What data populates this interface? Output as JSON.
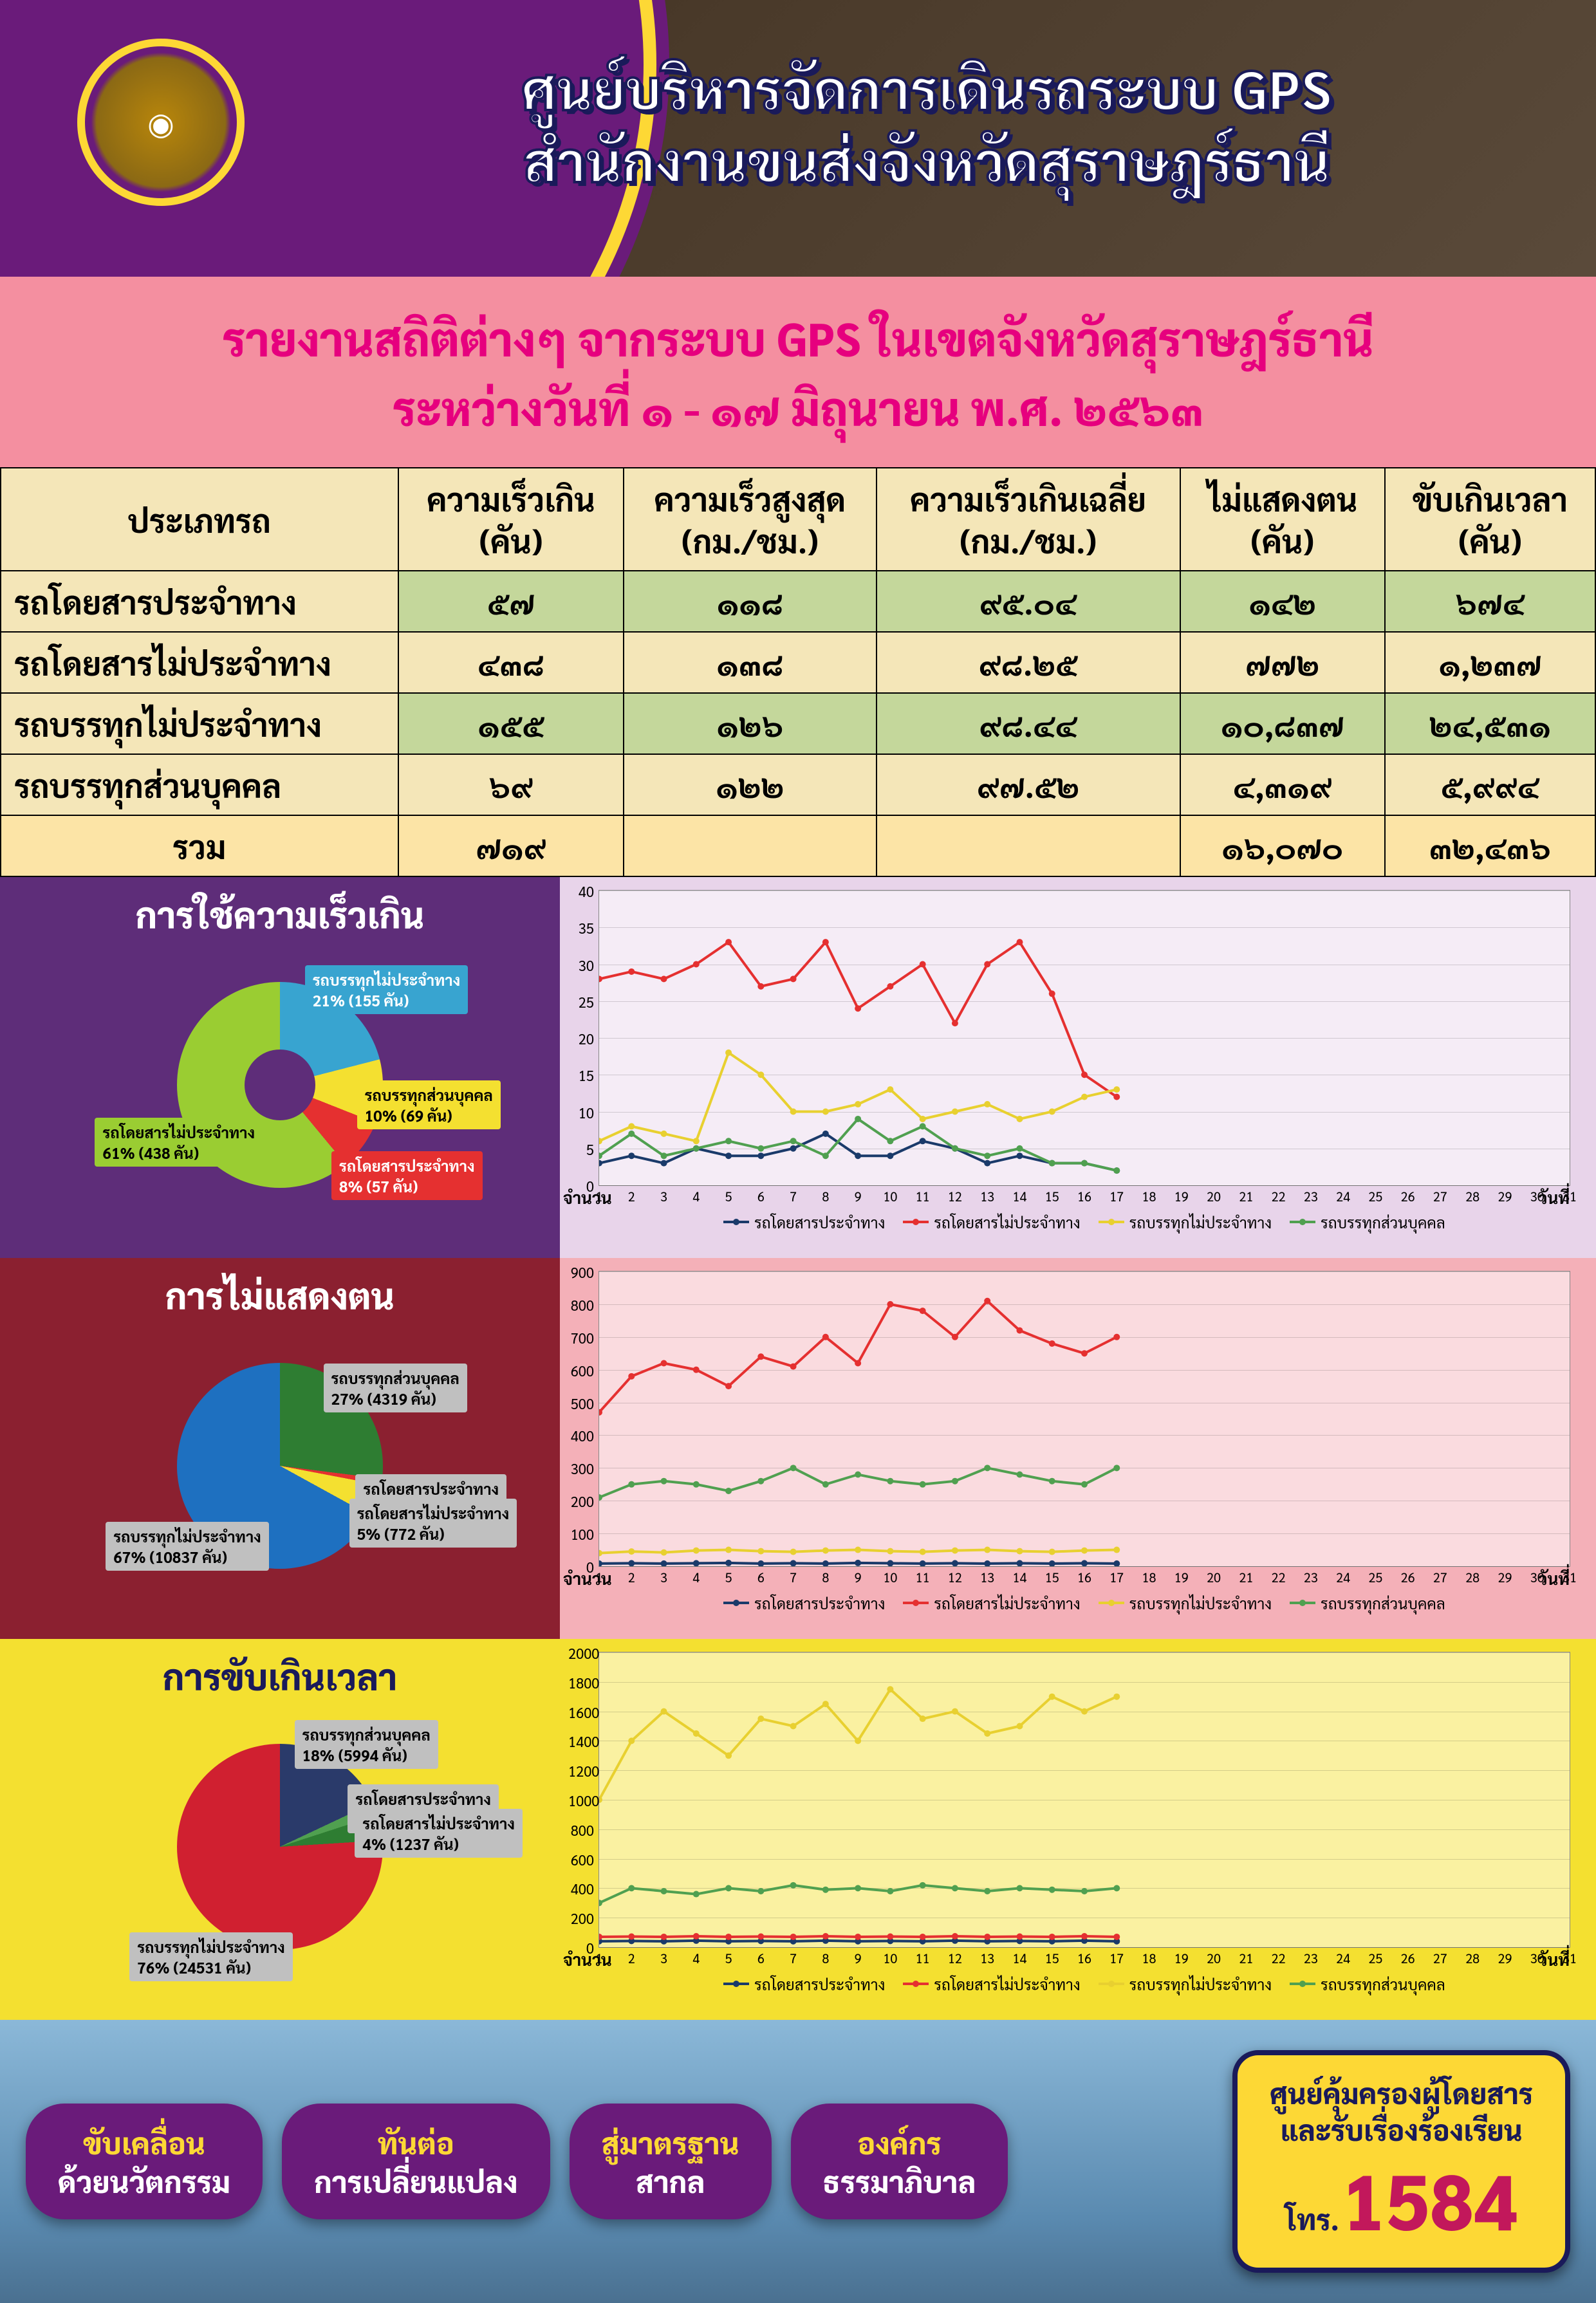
{
  "header": {
    "title1": "ศูนย์บริหารจัดการเดินรถระบบ GPS",
    "title2": "สำนักงานขนส่งจังหวัดสุราษฎร์ธานี"
  },
  "subtitle": {
    "line1": "รายงานสถิติต่างๆ จากระบบ GPS ในเขตจังหวัดสุราษฎร์ธานี",
    "line2": "ระหว่างวันที่ ๑ - ๑๗ มิถุนายน พ.ศ. ๒๕๖๓"
  },
  "table": {
    "columns": [
      "ประเภทรถ",
      "ความเร็วเกิน\n(คัน)",
      "ความเร็วสูงสุด\n(กม./ชม.)",
      "ความเร็วเกินเฉลี่ย\n(กม./ชม.)",
      "ไม่แสดงตน\n(คัน)",
      "ขับเกินเวลา\n(คัน)"
    ],
    "rows": [
      [
        "รถโดยสารประจำทาง",
        "๕๗",
        "๑๑๘",
        "๙๕.๐๔",
        "๑๔๒",
        "๖๗๔"
      ],
      [
        "รถโดยสารไม่ประจำทาง",
        "๔๓๘",
        "๑๓๘",
        "๙๘.๒๕",
        "๗๗๒",
        "๑,๒๓๗"
      ],
      [
        "รถบรรทุกไม่ประจำทาง",
        "๑๕๕",
        "๑๒๖",
        "๙๘.๔๔",
        "๑๐,๘๓๗",
        "๒๔,๕๓๑"
      ],
      [
        "รถบรรทุกส่วนบุคคล",
        "๖๙",
        "๑๒๒",
        "๙๗.๕๒",
        "๔,๓๑๙",
        "๕,๙๙๔"
      ]
    ],
    "sum": [
      "รวม",
      "๗๑๙",
      "",
      "",
      "๑๖,๐๗๐",
      "๓๒,๔๓๖"
    ]
  },
  "series_names": [
    "รถโดยสารประจำทาง",
    "รถโดยสารไม่ประจำทาง",
    "รถบรรทุกไม่ประจำทาง",
    "รถบรรทุกส่วนบุคคล"
  ],
  "series_colors": [
    "#1a3a6a",
    "#e53030",
    "#e8d030",
    "#50a050"
  ],
  "days": [
    1,
    2,
    3,
    4,
    5,
    6,
    7,
    8,
    9,
    10,
    11,
    12,
    13,
    14,
    15,
    16,
    17,
    18,
    19,
    20,
    21,
    22,
    23,
    24,
    25,
    26,
    27,
    28,
    29,
    30,
    31
  ],
  "axis_y_label": "จำนวน",
  "axis_x_label": "วันที่",
  "section1": {
    "title": "การใช้ความเร็วเกิน",
    "pie": {
      "slices": [
        {
          "label": "รถบรรทุกไม่ประจำทาง",
          "pct": 21,
          "count": "155 คัน",
          "color": "#38a4d0",
          "label_bg": "#38a4d0",
          "label_fg": "#fff"
        },
        {
          "label": "รถบรรทุกส่วนบุคคล",
          "pct": 10,
          "count": "69 คัน",
          "color": "#f4e030",
          "label_bg": "#f4e030",
          "label_fg": "#000"
        },
        {
          "label": "รถโดยสารประจำทาง",
          "pct": 8,
          "count": "57 คัน",
          "color": "#e53030",
          "label_bg": "#e53030",
          "label_fg": "#fff"
        },
        {
          "label": "รถโดยสารไม่ประจำทาง",
          "pct": 61,
          "count": "438 คัน",
          "color": "#9acd32",
          "label_bg": "#9acd32",
          "label_fg": "#000"
        }
      ],
      "donut_inner": "#5e2d79"
    },
    "line": {
      "ylim": [
        0,
        40
      ],
      "ystep": 5,
      "data": [
        [
          3,
          4,
          3,
          5,
          4,
          4,
          5,
          7,
          4,
          4,
          6,
          5,
          3,
          4,
          3,
          3,
          2
        ],
        [
          28,
          29,
          28,
          30,
          33,
          27,
          28,
          33,
          24,
          27,
          30,
          22,
          30,
          33,
          26,
          15,
          12
        ],
        [
          6,
          8,
          7,
          6,
          18,
          15,
          10,
          10,
          11,
          13,
          9,
          10,
          11,
          9,
          10,
          12,
          13
        ],
        [
          4,
          7,
          4,
          5,
          6,
          5,
          6,
          4,
          9,
          6,
          8,
          5,
          4,
          5,
          3,
          3,
          2
        ]
      ]
    }
  },
  "section2": {
    "title": "การไม่แสดงตน",
    "pie": {
      "slices": [
        {
          "label": "รถบรรทุกส่วนบุคคล",
          "pct": 27,
          "count": "4319 คัน",
          "color": "#2e7d32",
          "label_bg": "#c0c0c0",
          "label_fg": "#000"
        },
        {
          "label": "รถโดยสารประจำทาง",
          "pct": 1,
          "count": "142 คัน",
          "color": "#e53030",
          "label_bg": "#c0c0c0",
          "label_fg": "#000"
        },
        {
          "label": "รถโดยสารไม่ประจำทาง",
          "pct": 5,
          "count": "772 คัน",
          "color": "#f4e030",
          "label_bg": "#c0c0c0",
          "label_fg": "#000"
        },
        {
          "label": "รถบรรทุกไม่ประจำทาง",
          "pct": 67,
          "count": "10837 คัน",
          "color": "#1e70c0",
          "label_bg": "#c0c0c0",
          "label_fg": "#000"
        }
      ]
    },
    "line": {
      "ylim": [
        0,
        900
      ],
      "ystep": 100,
      "data": [
        [
          8,
          9,
          8,
          9,
          10,
          8,
          9,
          8,
          10,
          9,
          8,
          9,
          8,
          9,
          8,
          9,
          8
        ],
        [
          470,
          580,
          620,
          600,
          550,
          640,
          610,
          700,
          620,
          800,
          780,
          700,
          810,
          720,
          680,
          650,
          700
        ],
        [
          40,
          45,
          42,
          48,
          50,
          46,
          44,
          48,
          50,
          46,
          44,
          48,
          50,
          46,
          44,
          48,
          50
        ],
        [
          210,
          250,
          260,
          250,
          230,
          260,
          300,
          250,
          280,
          260,
          250,
          260,
          300,
          280,
          260,
          250,
          300
        ]
      ]
    }
  },
  "section3": {
    "title": "การขับเกินเวลา",
    "pie": {
      "slices": [
        {
          "label": "รถบรรทุกส่วนบุคคล",
          "pct": 18,
          "count": "5994 คัน",
          "color": "#2a3a6a",
          "label_bg": "#c0c0c0",
          "label_fg": "#000"
        },
        {
          "label": "รถโดยสารประจำทาง",
          "pct": 2,
          "count": "674 คัน",
          "color": "#50a050",
          "label_bg": "#c0c0c0",
          "label_fg": "#000"
        },
        {
          "label": "รถโดยสารไม่ประจำทาง",
          "pct": 4,
          "count": "1237 คัน",
          "color": "#2e7d32",
          "label_bg": "#c0c0c0",
          "label_fg": "#000"
        },
        {
          "label": "รถบรรทุกไม่ประจำทาง",
          "pct": 76,
          "count": "24531 คัน",
          "color": "#d02030",
          "label_bg": "#c0c0c0",
          "label_fg": "#000"
        }
      ]
    },
    "line": {
      "ylim": [
        0,
        2000
      ],
      "ystep": 200,
      "data": [
        [
          40,
          42,
          40,
          44,
          40,
          42,
          40,
          44,
          40,
          42,
          40,
          44,
          40,
          42,
          40,
          44,
          40
        ],
        [
          70,
          72,
          70,
          74,
          70,
          72,
          70,
          74,
          70,
          72,
          70,
          74,
          70,
          72,
          70,
          74,
          70
        ],
        [
          1000,
          1400,
          1600,
          1450,
          1300,
          1550,
          1500,
          1650,
          1400,
          1750,
          1550,
          1600,
          1450,
          1500,
          1700,
          1600,
          1700
        ],
        [
          300,
          400,
          380,
          360,
          400,
          380,
          420,
          390,
          400,
          380,
          420,
          400,
          380,
          400,
          390,
          380,
          400
        ]
      ]
    }
  },
  "footer": {
    "pills": [
      {
        "top": "ขับเคลื่อน",
        "bottom": "ด้วยนวัตกรรม"
      },
      {
        "top": "ทันต่อ",
        "bottom": "การเปลี่ยนแปลง"
      },
      {
        "top": "สู่มาตรฐาน",
        "bottom": "สากล"
      },
      {
        "top": "องค์กร",
        "bottom": "ธรรมาภิบาล"
      }
    ],
    "hotline": {
      "line1": "ศูนย์คุ้มครองผู้โดยสาร",
      "line2": "และรับเรื่องร้องเรียน",
      "tel_label": "โทร.",
      "number": "1584"
    }
  }
}
